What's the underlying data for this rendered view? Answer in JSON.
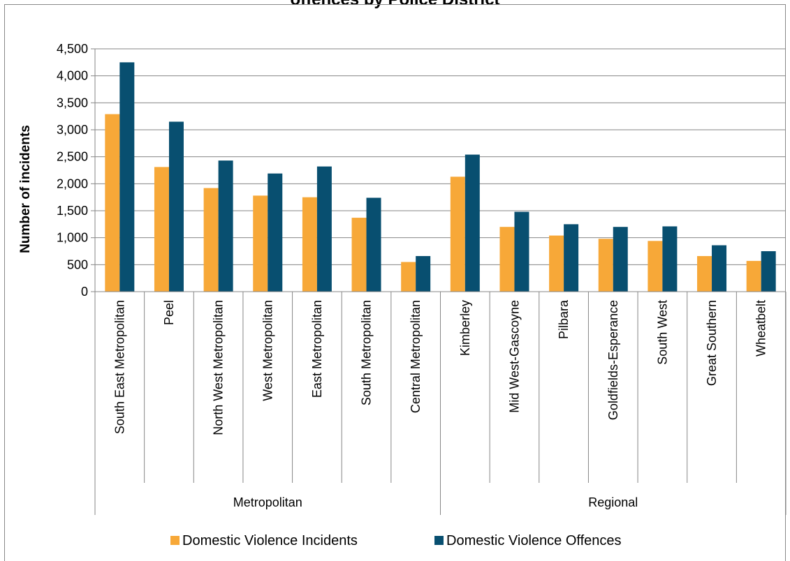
{
  "chart_data": {
    "type": "bar",
    "title": "offences by Police District",
    "xlabel": "",
    "ylabel": "Number of incidents",
    "ylim": [
      0,
      4500
    ],
    "ytick_step": 500,
    "yticks": [
      "0",
      "500",
      "1,000",
      "1,500",
      "2,000",
      "2,500",
      "3,000",
      "3,500",
      "4,000",
      "4,500"
    ],
    "grid": true,
    "legend_position": "bottom",
    "categories": [
      "South East Metropolitan",
      "Peel",
      "North West Metropolitan",
      "West Metropolitan",
      "East Metropolitan",
      "South Metropolitan",
      "Central Metropolitan",
      "Kimberley",
      "Mid West-Gascoyne",
      "Pilbara",
      "Goldfields-Esperance",
      "South West",
      "Great Southern",
      "Wheatbelt"
    ],
    "groups": [
      {
        "label": "Metropolitan",
        "count": 7
      },
      {
        "label": "Regional",
        "count": 7
      }
    ],
    "series": [
      {
        "name": "Domestic Violence Incidents",
        "color": "#F7A838",
        "values": [
          3290,
          2310,
          1920,
          1780,
          1750,
          1370,
          550,
          2130,
          1200,
          1040,
          980,
          940,
          660,
          570
        ]
      },
      {
        "name": "Domestic Violence Offences",
        "color": "#084F70",
        "values": [
          4250,
          3150,
          2430,
          2190,
          2320,
          1740,
          660,
          2540,
          1480,
          1250,
          1200,
          1210,
          860,
          750
        ]
      }
    ]
  }
}
